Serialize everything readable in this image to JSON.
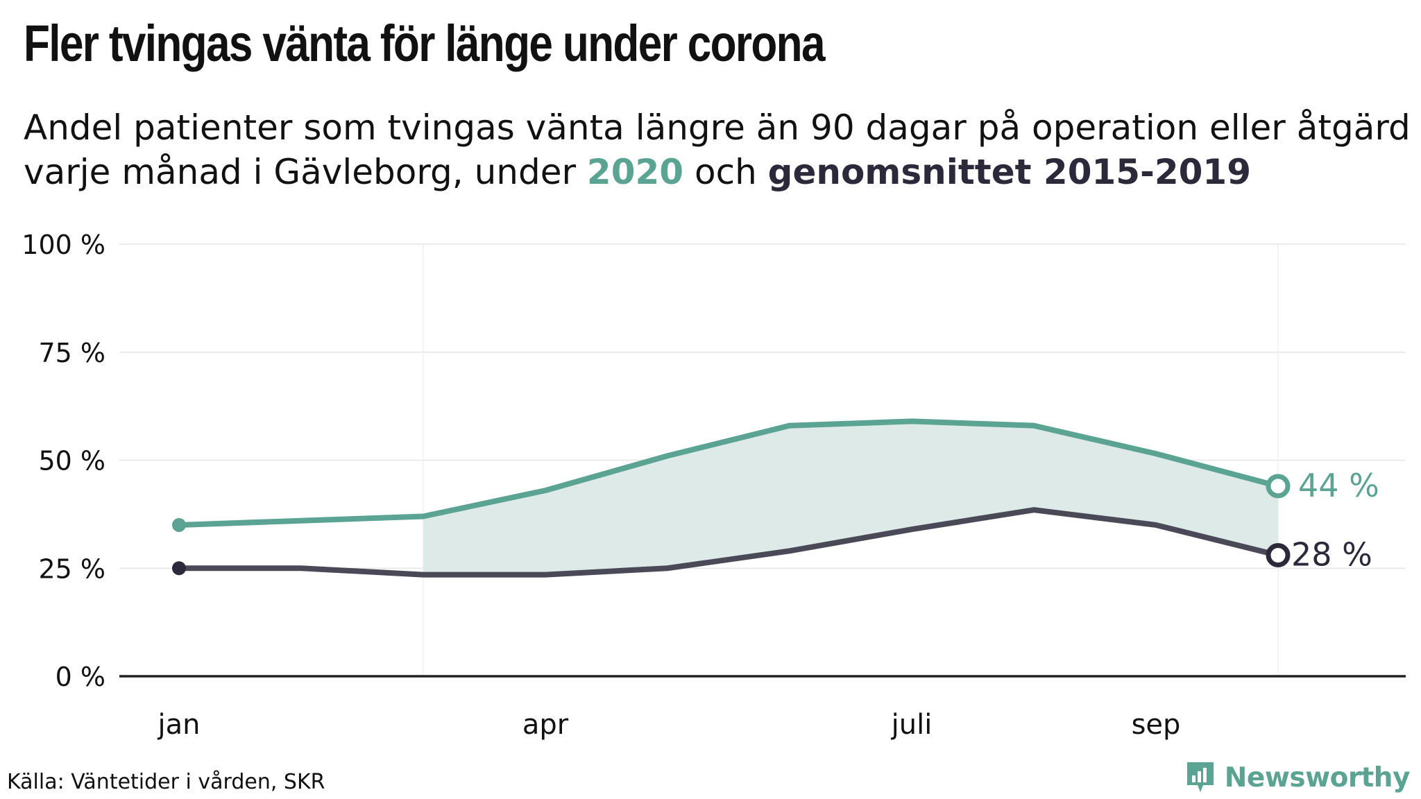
{
  "title": "Fler tvingas vänta för länge under corona",
  "subtitle": {
    "line1": "Andel patienter som tvingas vänta längre än 90 dagar på operation eller åtgärd",
    "line2_prefix": "varje månad i Gävleborg, under ",
    "highlight_2020": "2020",
    "line2_mid": " och ",
    "highlight_avg": "genomsnittet 2015-2019"
  },
  "colors": {
    "series_2020": "#5ba393",
    "series_avg": "#4a4958",
    "endpoint_avg": "#2c2a3a",
    "fill": "#dbe9e6",
    "grid": "#e6e6e6",
    "axis": "#222222"
  },
  "chart_data": {
    "type": "line",
    "x": [
      1,
      2,
      3,
      4,
      5,
      6,
      7,
      8,
      9,
      10
    ],
    "x_ticks": [
      {
        "x": 1,
        "label": "jan"
      },
      {
        "x": 4,
        "label": "apr"
      },
      {
        "x": 7,
        "label": "juli"
      },
      {
        "x": 9,
        "label": "sep"
      }
    ],
    "ylim": [
      0,
      100
    ],
    "y_ticks": [
      {
        "value": 0,
        "label": "0 %"
      },
      {
        "value": 25,
        "label": "25 %"
      },
      {
        "value": 50,
        "label": "50 %"
      },
      {
        "value": 75,
        "label": "75 %"
      },
      {
        "value": 100,
        "label": "100 %"
      }
    ],
    "grid": true,
    "shaded_between_from_x": 3,
    "series": [
      {
        "key": "2020",
        "values": [
          35,
          36,
          37,
          43,
          51,
          58,
          59,
          58,
          51.5,
          44
        ],
        "end_label": "44 %"
      },
      {
        "key": "avg",
        "values": [
          25,
          25,
          23.5,
          23.5,
          25,
          29,
          34,
          38.5,
          35,
          28
        ],
        "end_label": "28 %"
      }
    ]
  },
  "source": "Källa: Väntetider i vården, SKR",
  "brand": {
    "name": "Newsworthy",
    "logo_icon": "bar-chart-flag-icon"
  }
}
